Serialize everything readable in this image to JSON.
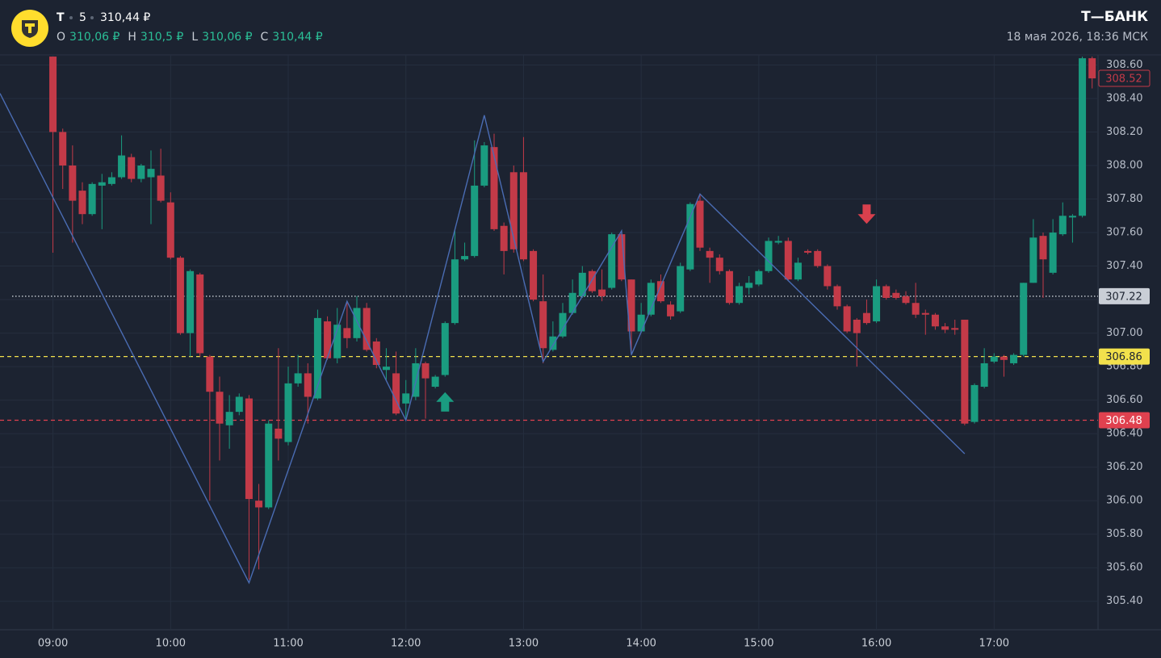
{
  "header": {
    "symbol": "T",
    "interval": "5",
    "last": "310,44 ₽",
    "ohlc": [
      {
        "label": "O",
        "value": "310,06 ₽"
      },
      {
        "label": "H",
        "value": "310,5 ₽"
      },
      {
        "label": "L",
        "value": "310,06 ₽"
      },
      {
        "label": "C",
        "value": "310,44 ₽"
      }
    ],
    "brand": "Т—БАНК",
    "datetime": "18 мая 2026, 18:36 МСК"
  },
  "chart_data": {
    "type": "candlestick",
    "up_color": "#1a9c80",
    "down_color": "#c33a48",
    "grid": true,
    "xlim": [
      "08:33",
      "17:53"
    ],
    "ylim": [
      305.23,
      308.66
    ],
    "xticks": [
      "09:00",
      "10:00",
      "11:00",
      "12:00",
      "13:00",
      "14:00",
      "15:00",
      "16:00",
      "17:00"
    ],
    "yticks": [
      {
        "value": 305.4,
        "label": "305.40"
      },
      {
        "value": 305.6,
        "label": "305.60"
      },
      {
        "value": 305.8,
        "label": "305.80"
      },
      {
        "value": 306.0,
        "label": "306.00"
      },
      {
        "value": 306.2,
        "label": "306.20"
      },
      {
        "value": 306.4,
        "label": "306.40"
      },
      {
        "value": 306.6,
        "label": "306.60"
      },
      {
        "value": 306.8,
        "label": "306.80"
      },
      {
        "value": 307.0,
        "label": "307.00"
      },
      {
        "value": 307.2,
        "label": "307.20"
      },
      {
        "value": 307.4,
        "label": "307.40"
      },
      {
        "value": 307.6,
        "label": "307.60"
      },
      {
        "value": 307.8,
        "label": "307.80"
      },
      {
        "value": 308.0,
        "label": "308.00"
      },
      {
        "value": 308.2,
        "label": "308.20"
      },
      {
        "value": 308.4,
        "label": "308.40"
      },
      {
        "value": 308.6,
        "label": "308.60"
      }
    ],
    "x": [
      "09:00",
      "09:05",
      "09:10",
      "09:15",
      "09:20",
      "09:25",
      "09:30",
      "09:35",
      "09:40",
      "09:45",
      "09:50",
      "09:55",
      "10:00",
      "10:05",
      "10:10",
      "10:15",
      "10:20",
      "10:25",
      "10:30",
      "10:35",
      "10:40",
      "10:45",
      "10:50",
      "10:55",
      "11:00",
      "11:05",
      "11:10",
      "11:15",
      "11:20",
      "11:25",
      "11:30",
      "11:35",
      "11:40",
      "11:45",
      "11:50",
      "11:55",
      "12:00",
      "12:05",
      "12:10",
      "12:15",
      "12:20",
      "12:25",
      "12:30",
      "12:35",
      "12:40",
      "12:45",
      "12:50",
      "12:55",
      "13:00",
      "13:05",
      "13:10",
      "13:15",
      "13:20",
      "13:25",
      "13:30",
      "13:35",
      "13:40",
      "13:45",
      "13:50",
      "13:55",
      "14:00",
      "14:05",
      "14:10",
      "14:15",
      "14:20",
      "14:25",
      "14:30",
      "14:35",
      "14:40",
      "14:45",
      "14:50",
      "14:55",
      "15:00",
      "15:05",
      "15:10",
      "15:15",
      "15:20",
      "15:25",
      "15:30",
      "15:35",
      "15:40",
      "15:45",
      "15:50",
      "15:55",
      "16:00",
      "16:05",
      "16:10",
      "16:15",
      "16:20",
      "16:25",
      "16:30",
      "16:35",
      "16:40",
      "16:45",
      "16:50",
      "16:55",
      "17:00",
      "17:05",
      "17:10",
      "17:15",
      "17:20",
      "17:25",
      "17:30",
      "17:35",
      "17:40",
      "17:45",
      "17:50"
    ],
    "open": [
      308.65,
      308.2,
      308.0,
      307.85,
      307.71,
      307.88,
      307.89,
      307.93,
      308.05,
      307.92,
      307.93,
      307.94,
      307.78,
      307.45,
      307.0,
      307.35,
      306.86,
      306.65,
      306.45,
      306.53,
      306.61,
      306.0,
      305.96,
      306.43,
      306.35,
      306.7,
      306.76,
      306.61,
      307.07,
      306.85,
      307.03,
      306.97,
      307.15,
      306.95,
      306.78,
      306.76,
      306.58,
      306.62,
      306.82,
      306.68,
      306.75,
      307.06,
      307.44,
      307.46,
      307.88,
      308.11,
      307.64,
      307.96,
      307.96,
      307.49,
      307.19,
      306.9,
      306.98,
      307.12,
      307.22,
      307.37,
      307.26,
      307.27,
      307.59,
      307.32,
      307.01,
      307.11,
      307.31,
      307.17,
      307.13,
      307.38,
      307.79,
      307.49,
      307.45,
      307.37,
      307.18,
      307.27,
      307.29,
      307.37,
      307.54,
      307.55,
      307.32,
      307.49,
      307.49,
      307.4,
      307.28,
      307.16,
      307.08,
      307.12,
      307.07,
      307.28,
      307.24,
      307.22,
      307.18,
      307.12,
      307.11,
      307.04,
      307.03,
      307.08,
      306.47,
      306.68,
      306.83,
      306.86,
      306.82,
      306.87,
      307.3,
      307.58,
      307.36,
      307.59,
      307.69,
      307.7,
      308.64
    ],
    "high": [
      308.65,
      308.22,
      308.12,
      307.9,
      307.9,
      307.95,
      307.96,
      308.18,
      308.07,
      308.01,
      308.09,
      308.1,
      307.84,
      307.46,
      307.38,
      307.36,
      306.87,
      306.74,
      306.63,
      306.64,
      306.63,
      306.1,
      306.48,
      306.91,
      306.8,
      306.87,
      306.82,
      307.14,
      307.1,
      307.15,
      307.19,
      307.22,
      307.18,
      306.97,
      306.91,
      306.89,
      306.72,
      306.91,
      306.83,
      306.75,
      307.07,
      307.62,
      307.54,
      308.15,
      308.14,
      308.19,
      307.66,
      308.0,
      308.17,
      307.5,
      307.35,
      307.07,
      307.18,
      307.32,
      307.4,
      307.38,
      307.38,
      307.6,
      307.61,
      307.32,
      307.18,
      307.32,
      307.35,
      307.19,
      307.42,
      307.78,
      307.83,
      307.51,
      307.47,
      307.38,
      307.3,
      307.34,
      307.38,
      307.57,
      307.58,
      307.57,
      307.45,
      307.5,
      307.5,
      307.41,
      307.29,
      307.17,
      307.09,
      307.2,
      307.32,
      307.29,
      307.26,
      307.25,
      307.3,
      307.14,
      307.12,
      307.06,
      307.08,
      307.08,
      306.7,
      306.91,
      306.88,
      306.87,
      306.88,
      307.3,
      307.68,
      307.6,
      307.68,
      307.78,
      307.71,
      308.65,
      308.65
    ],
    "low": [
      307.48,
      307.86,
      307.54,
      307.65,
      307.7,
      307.62,
      307.88,
      307.92,
      307.9,
      307.9,
      307.65,
      307.78,
      307.44,
      306.99,
      306.86,
      306.86,
      306.0,
      306.24,
      306.31,
      306.51,
      305.53,
      305.59,
      305.95,
      306.24,
      306.33,
      306.68,
      306.46,
      306.6,
      306.84,
      306.82,
      306.91,
      306.95,
      306.89,
      306.79,
      306.72,
      306.51,
      306.48,
      306.6,
      306.49,
      306.67,
      306.74,
      307.05,
      307.43,
      307.45,
      307.87,
      307.61,
      307.35,
      307.48,
      307.43,
      307.19,
      306.82,
      306.89,
      306.97,
      307.11,
      307.21,
      307.24,
      307.19,
      307.26,
      307.31,
      306.87,
      307.0,
      307.1,
      307.18,
      307.08,
      307.12,
      307.37,
      307.49,
      307.3,
      307.35,
      307.17,
      307.17,
      307.23,
      307.28,
      307.36,
      307.53,
      307.31,
      307.31,
      307.47,
      307.39,
      307.26,
      307.14,
      307.0,
      306.8,
      307.05,
      307.06,
      307.2,
      307.2,
      307.17,
      307.09,
      306.99,
      307.02,
      307.0,
      306.99,
      306.45,
      306.46,
      306.67,
      306.82,
      306.74,
      306.81,
      306.86,
      307.3,
      307.21,
      307.35,
      307.58,
      307.54,
      307.69,
      308.46
    ],
    "close": [
      308.2,
      308.0,
      307.79,
      307.71,
      307.89,
      307.9,
      307.93,
      308.06,
      307.92,
      308.0,
      307.98,
      307.79,
      307.45,
      307.0,
      307.37,
      306.88,
      306.65,
      306.46,
      306.53,
      306.62,
      306.01,
      305.96,
      306.46,
      306.37,
      306.7,
      306.76,
      306.62,
      307.09,
      306.85,
      307.05,
      306.97,
      307.15,
      306.9,
      306.81,
      306.8,
      306.52,
      306.64,
      306.82,
      306.73,
      306.74,
      307.06,
      307.44,
      307.46,
      307.88,
      308.12,
      307.62,
      307.49,
      307.5,
      307.44,
      307.2,
      306.91,
      306.98,
      307.12,
      307.24,
      307.36,
      307.25,
      307.22,
      307.59,
      307.32,
      307.01,
      307.11,
      307.3,
      307.19,
      307.1,
      307.4,
      307.77,
      307.51,
      307.45,
      307.37,
      307.18,
      307.28,
      307.3,
      307.37,
      307.55,
      307.55,
      307.32,
      307.42,
      307.48,
      307.4,
      307.28,
      307.16,
      307.01,
      307.0,
      307.06,
      307.28,
      307.21,
      307.21,
      307.18,
      307.11,
      307.11,
      307.04,
      307.02,
      307.02,
      306.46,
      306.69,
      306.82,
      306.86,
      306.84,
      306.87,
      307.3,
      307.57,
      307.44,
      307.6,
      307.7,
      307.7,
      308.64,
      308.52
    ],
    "zigzag": {
      "color": "#4a6cb3",
      "x": [
        "08:33",
        "10:40",
        "11:30",
        "12:00",
        "12:40",
        "13:10",
        "13:50",
        "13:55",
        "14:30",
        "16:45"
      ],
      "y": [
        308.43,
        305.51,
        307.19,
        306.48,
        308.3,
        306.83,
        307.61,
        306.87,
        307.83,
        306.28
      ]
    },
    "price_lines": [
      {
        "value": 307.22,
        "color": "#c9ced6",
        "text_color": "#1c2331",
        "style": "dotted",
        "line": true
      },
      {
        "value": 306.86,
        "color": "#f2e14c",
        "text_color": "#1c2331",
        "style": "dashed",
        "line": true
      },
      {
        "value": 306.48,
        "color": "#e0414f",
        "text_color": "#ffffff",
        "style": "dashed",
        "line": true
      },
      {
        "value": 308.52,
        "color": "#c33a48",
        "text_color": "#c33a48",
        "style": "outline",
        "line": false
      }
    ],
    "signals": [
      {
        "x": "12:20",
        "y": 306.59,
        "direction": "up",
        "color": "#1a9c80"
      },
      {
        "x": "15:55",
        "y": 307.71,
        "direction": "down",
        "color": "#d8404d"
      }
    ]
  }
}
